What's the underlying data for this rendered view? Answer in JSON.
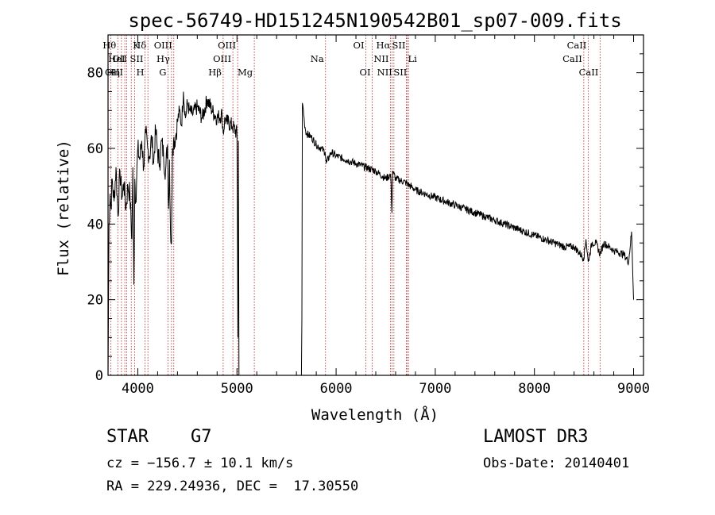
{
  "chart_data": {
    "type": "line",
    "title": "spec-56749-HD151245N190542B01_sp07-009.fits",
    "xlabel": "Wavelength (Å)",
    "ylabel": "Flux (relative)",
    "xlim": [
      3700,
      9100
    ],
    "ylim": [
      0,
      90
    ],
    "xticks": [
      4000,
      5000,
      6000,
      7000,
      8000,
      9000
    ],
    "yticks": [
      0,
      20,
      40,
      60,
      80
    ],
    "grid": false,
    "series": [
      {
        "name": "flux",
        "x": [
          3700,
          3710,
          3720,
          3730,
          3740,
          3760,
          3780,
          3800,
          3820,
          3840,
          3860,
          3880,
          3900,
          3920,
          3940,
          3950,
          3960,
          3970,
          3980,
          4000,
          4020,
          4040,
          4060,
          4080,
          4100,
          4120,
          4140,
          4160,
          4180,
          4200,
          4220,
          4240,
          4260,
          4280,
          4300,
          4310,
          4320,
          4330,
          4340,
          4350,
          4360,
          4380,
          4400,
          4420,
          4440,
          4460,
          4480,
          4500,
          4520,
          4550,
          4600,
          4650,
          4700,
          4750,
          4800,
          4850,
          4861,
          4880,
          4900,
          4950,
          5000,
          5010,
          5015,
          5020,
          5025,
          5650,
          5655,
          5660,
          5670,
          5680,
          5690,
          5700,
          5750,
          5800,
          5850,
          5890,
          5900,
          5950,
          6000,
          6100,
          6200,
          6300,
          6400,
          6500,
          6550,
          6563,
          6570,
          6600,
          6700,
          6800,
          6900,
          7000,
          7100,
          7200,
          7300,
          7400,
          7500,
          7600,
          7700,
          7800,
          7900,
          8000,
          8100,
          8200,
          8300,
          8400,
          8498,
          8520,
          8542,
          8580,
          8620,
          8662,
          8700,
          8800,
          8900,
          8950,
          8980,
          9000
        ],
        "y": [
          0,
          40,
          48,
          44,
          52,
          46,
          55,
          42,
          54,
          47,
          51,
          44,
          50,
          48,
          36,
          55,
          24,
          52,
          46,
          60,
          57,
          62,
          55,
          64,
          60,
          58,
          63,
          56,
          65,
          59,
          56,
          62,
          58,
          54,
          61,
          44,
          57,
          38,
          35,
          60,
          62,
          63,
          67,
          70,
          66,
          75,
          68,
          72,
          70,
          69,
          71,
          68,
          73,
          70,
          68,
          69,
          64,
          68,
          67,
          66,
          64,
          10,
          62,
          0,
          0,
          0,
          15,
          72,
          70,
          67,
          65,
          64,
          63,
          61,
          60,
          59,
          56,
          59,
          58,
          57,
          56,
          55,
          54,
          52,
          53,
          43,
          54,
          52,
          51,
          49,
          48,
          47,
          46,
          45,
          44,
          43,
          42,
          41,
          40,
          39,
          38,
          37,
          36,
          35,
          34,
          34,
          31,
          36,
          30,
          35,
          35,
          32,
          35,
          33,
          32,
          30,
          38,
          20
        ],
        "color": "#000000"
      }
    ],
    "lines": [
      {
        "label": "OII",
        "wl": 3727,
        "row": 2,
        "side": "right"
      },
      {
        "label": "Hθ",
        "wl": 3798,
        "row": 1,
        "side": "left"
      },
      {
        "label": "Hη",
        "wl": 3835,
        "row": 3,
        "side": "left"
      },
      {
        "label": "OIII",
        "wl": 3869,
        "row": 3,
        "side": "left"
      },
      {
        "label": "HeI",
        "wl": 3889,
        "row": 2,
        "side": "left"
      },
      {
        "label": "K",
        "wl": 3934,
        "row": 1,
        "side": "right"
      },
      {
        "label": "H",
        "wl": 3968,
        "row": 3,
        "side": "right"
      },
      {
        "label": "SII",
        "wl": 4072,
        "row": 2,
        "side": "left"
      },
      {
        "label": "Hδ",
        "wl": 4102,
        "row": 1,
        "side": "left"
      },
      {
        "label": "G",
        "wl": 4304,
        "row": 3,
        "side": "left"
      },
      {
        "label": "Hγ",
        "wl": 4340,
        "row": 2,
        "side": "left"
      },
      {
        "label": "OIII",
        "wl": 4363,
        "row": 1,
        "side": "left"
      },
      {
        "label": "Hβ",
        "wl": 4861,
        "row": 3,
        "side": "left"
      },
      {
        "label": "OIII",
        "wl": 4959,
        "row": 2,
        "side": "left"
      },
      {
        "label": "OIII",
        "wl": 5007,
        "row": 1,
        "side": "left"
      },
      {
        "label": "Mg",
        "wl": 5175,
        "row": 3,
        "side": "left"
      },
      {
        "label": "Na",
        "wl": 5893,
        "row": 2,
        "side": "left"
      },
      {
        "label": "OI",
        "wl": 6300,
        "row": 1,
        "side": "left"
      },
      {
        "label": "OI",
        "wl": 6364,
        "row": 3,
        "side": "left"
      },
      {
        "label": "NII",
        "wl": 6548,
        "row": 2,
        "side": "left"
      },
      {
        "label": "Hα",
        "wl": 6563,
        "row": 1,
        "side": "left"
      },
      {
        "label": "NII",
        "wl": 6583,
        "row": 3,
        "side": "left"
      },
      {
        "label": "Li",
        "wl": 6708,
        "row": 2,
        "side": "right"
      },
      {
        "label": "SII",
        "wl": 6716,
        "row": 1,
        "side": "left"
      },
      {
        "label": "SII",
        "wl": 6731,
        "row": 3,
        "side": "left"
      },
      {
        "label": "CaII",
        "wl": 8498,
        "row": 2,
        "side": "left"
      },
      {
        "label": "CaII",
        "wl": 8542,
        "row": 1,
        "side": "left"
      },
      {
        "label": "CaII",
        "wl": 8662,
        "row": 3,
        "side": "left"
      }
    ]
  },
  "info": {
    "class_text": "STAR    G7",
    "cz_text": "cz = −156.7 ± 10.1 km/s",
    "radec_text": "RA = 229.24936, DEC =  17.30550",
    "survey_text": "LAMOST DR3",
    "obsdate_text": "Obs-Date: 20140401"
  }
}
